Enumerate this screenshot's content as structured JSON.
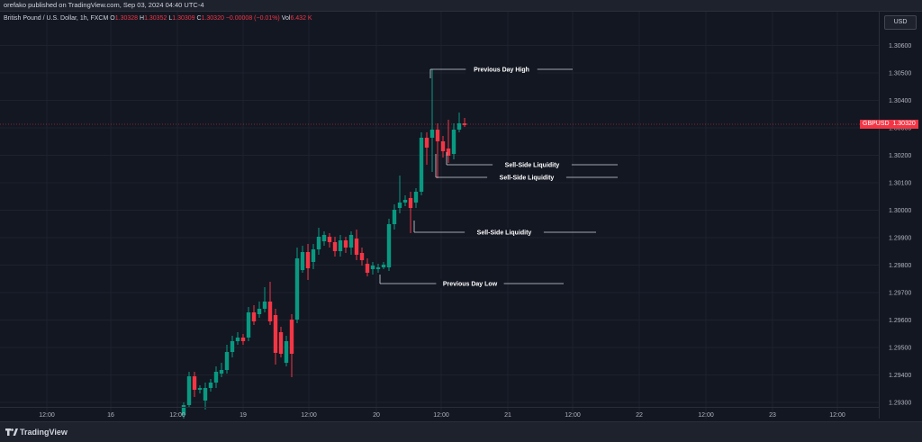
{
  "header": {
    "published": "orefako published on TradingView.com, Sep 03, 2024 04:40 UTC-4"
  },
  "symbol": {
    "name": "British Pound / U.S. Dollar, 1h, FXCM",
    "o_label": "O",
    "o": "1.30328",
    "h_label": "H",
    "h": "1.30352",
    "l_label": "L",
    "l": "1.30309",
    "c_label": "C",
    "c": "1.30320",
    "change": "−0.00008 (−0.01%)",
    "vol_label": "Vol",
    "vol": "6.432 K"
  },
  "currency_button": "USD",
  "price_tag": {
    "symbol": "GBPUSD",
    "price": "1.30320"
  },
  "price_axis": [
    "1.30600",
    "1.30500",
    "1.30400",
    "1.30300",
    "1.30200",
    "1.30100",
    "1.30000",
    "1.29900",
    "1.29800",
    "1.29700",
    "1.29600",
    "1.29500",
    "1.29400",
    "1.29300"
  ],
  "time_axis": [
    "12:00",
    "16",
    "12:00",
    "19",
    "12:00",
    "20",
    "12:00",
    "21",
    "12:00",
    "22",
    "12:00",
    "23",
    "12:00"
  ],
  "annotations": [
    "Previous Day High",
    "Sell-Side Liquidity",
    "Sell-Side Liquidity",
    "Sell-Side Liquidity",
    "Previous Day Low"
  ],
  "footer": {
    "brand": "TradingView"
  },
  "colors": {
    "up": "#089981",
    "down": "#f23645",
    "background": "#131722"
  }
}
